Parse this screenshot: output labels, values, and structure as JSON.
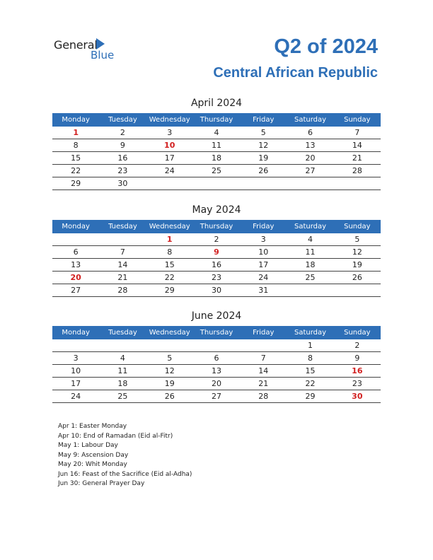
{
  "header": {
    "logo_general": "General",
    "logo_blue": "Blue",
    "title": "Q2 of 2024",
    "subtitle": "Central African Republic"
  },
  "weekdays": [
    "Monday",
    "Tuesday",
    "Wednesday",
    "Thursday",
    "Friday",
    "Saturday",
    "Sunday"
  ],
  "months": [
    {
      "title": "April 2024",
      "weeks": [
        [
          "1",
          "2",
          "3",
          "4",
          "5",
          "6",
          "7"
        ],
        [
          "8",
          "9",
          "10",
          "11",
          "12",
          "13",
          "14"
        ],
        [
          "15",
          "16",
          "17",
          "18",
          "19",
          "20",
          "21"
        ],
        [
          "22",
          "23",
          "24",
          "25",
          "26",
          "27",
          "28"
        ],
        [
          "29",
          "30",
          "",
          "",
          "",
          "",
          ""
        ]
      ],
      "holidays": [
        "1",
        "10"
      ]
    },
    {
      "title": "May 2024",
      "weeks": [
        [
          "",
          "",
          "1",
          "2",
          "3",
          "4",
          "5"
        ],
        [
          "6",
          "7",
          "8",
          "9",
          "10",
          "11",
          "12"
        ],
        [
          "13",
          "14",
          "15",
          "16",
          "17",
          "18",
          "19"
        ],
        [
          "20",
          "21",
          "22",
          "23",
          "24",
          "25",
          "26"
        ],
        [
          "27",
          "28",
          "29",
          "30",
          "31",
          "",
          ""
        ]
      ],
      "holidays": [
        "1",
        "9",
        "20"
      ]
    },
    {
      "title": "June 2024",
      "weeks": [
        [
          "",
          "",
          "",
          "",
          "",
          "1",
          "2"
        ],
        [
          "3",
          "4",
          "5",
          "6",
          "7",
          "8",
          "9"
        ],
        [
          "10",
          "11",
          "12",
          "13",
          "14",
          "15",
          "16"
        ],
        [
          "17",
          "18",
          "19",
          "20",
          "21",
          "22",
          "23"
        ],
        [
          "24",
          "25",
          "26",
          "27",
          "28",
          "29",
          "30"
        ]
      ],
      "holidays": [
        "16",
        "30"
      ]
    }
  ],
  "holiday_notes": [
    "Apr 1: Easter Monday",
    "Apr 10: End of Ramadan (Eid al-Fitr)",
    "May 1: Labour Day",
    "May 9: Ascension Day",
    "May 20: Whit Monday",
    "Jun 16: Feast of the Sacrifice (Eid al-Adha)",
    "Jun 30: General Prayer Day"
  ],
  "colors": {
    "accent": "#2e6fb7",
    "holiday": "#d22020"
  }
}
